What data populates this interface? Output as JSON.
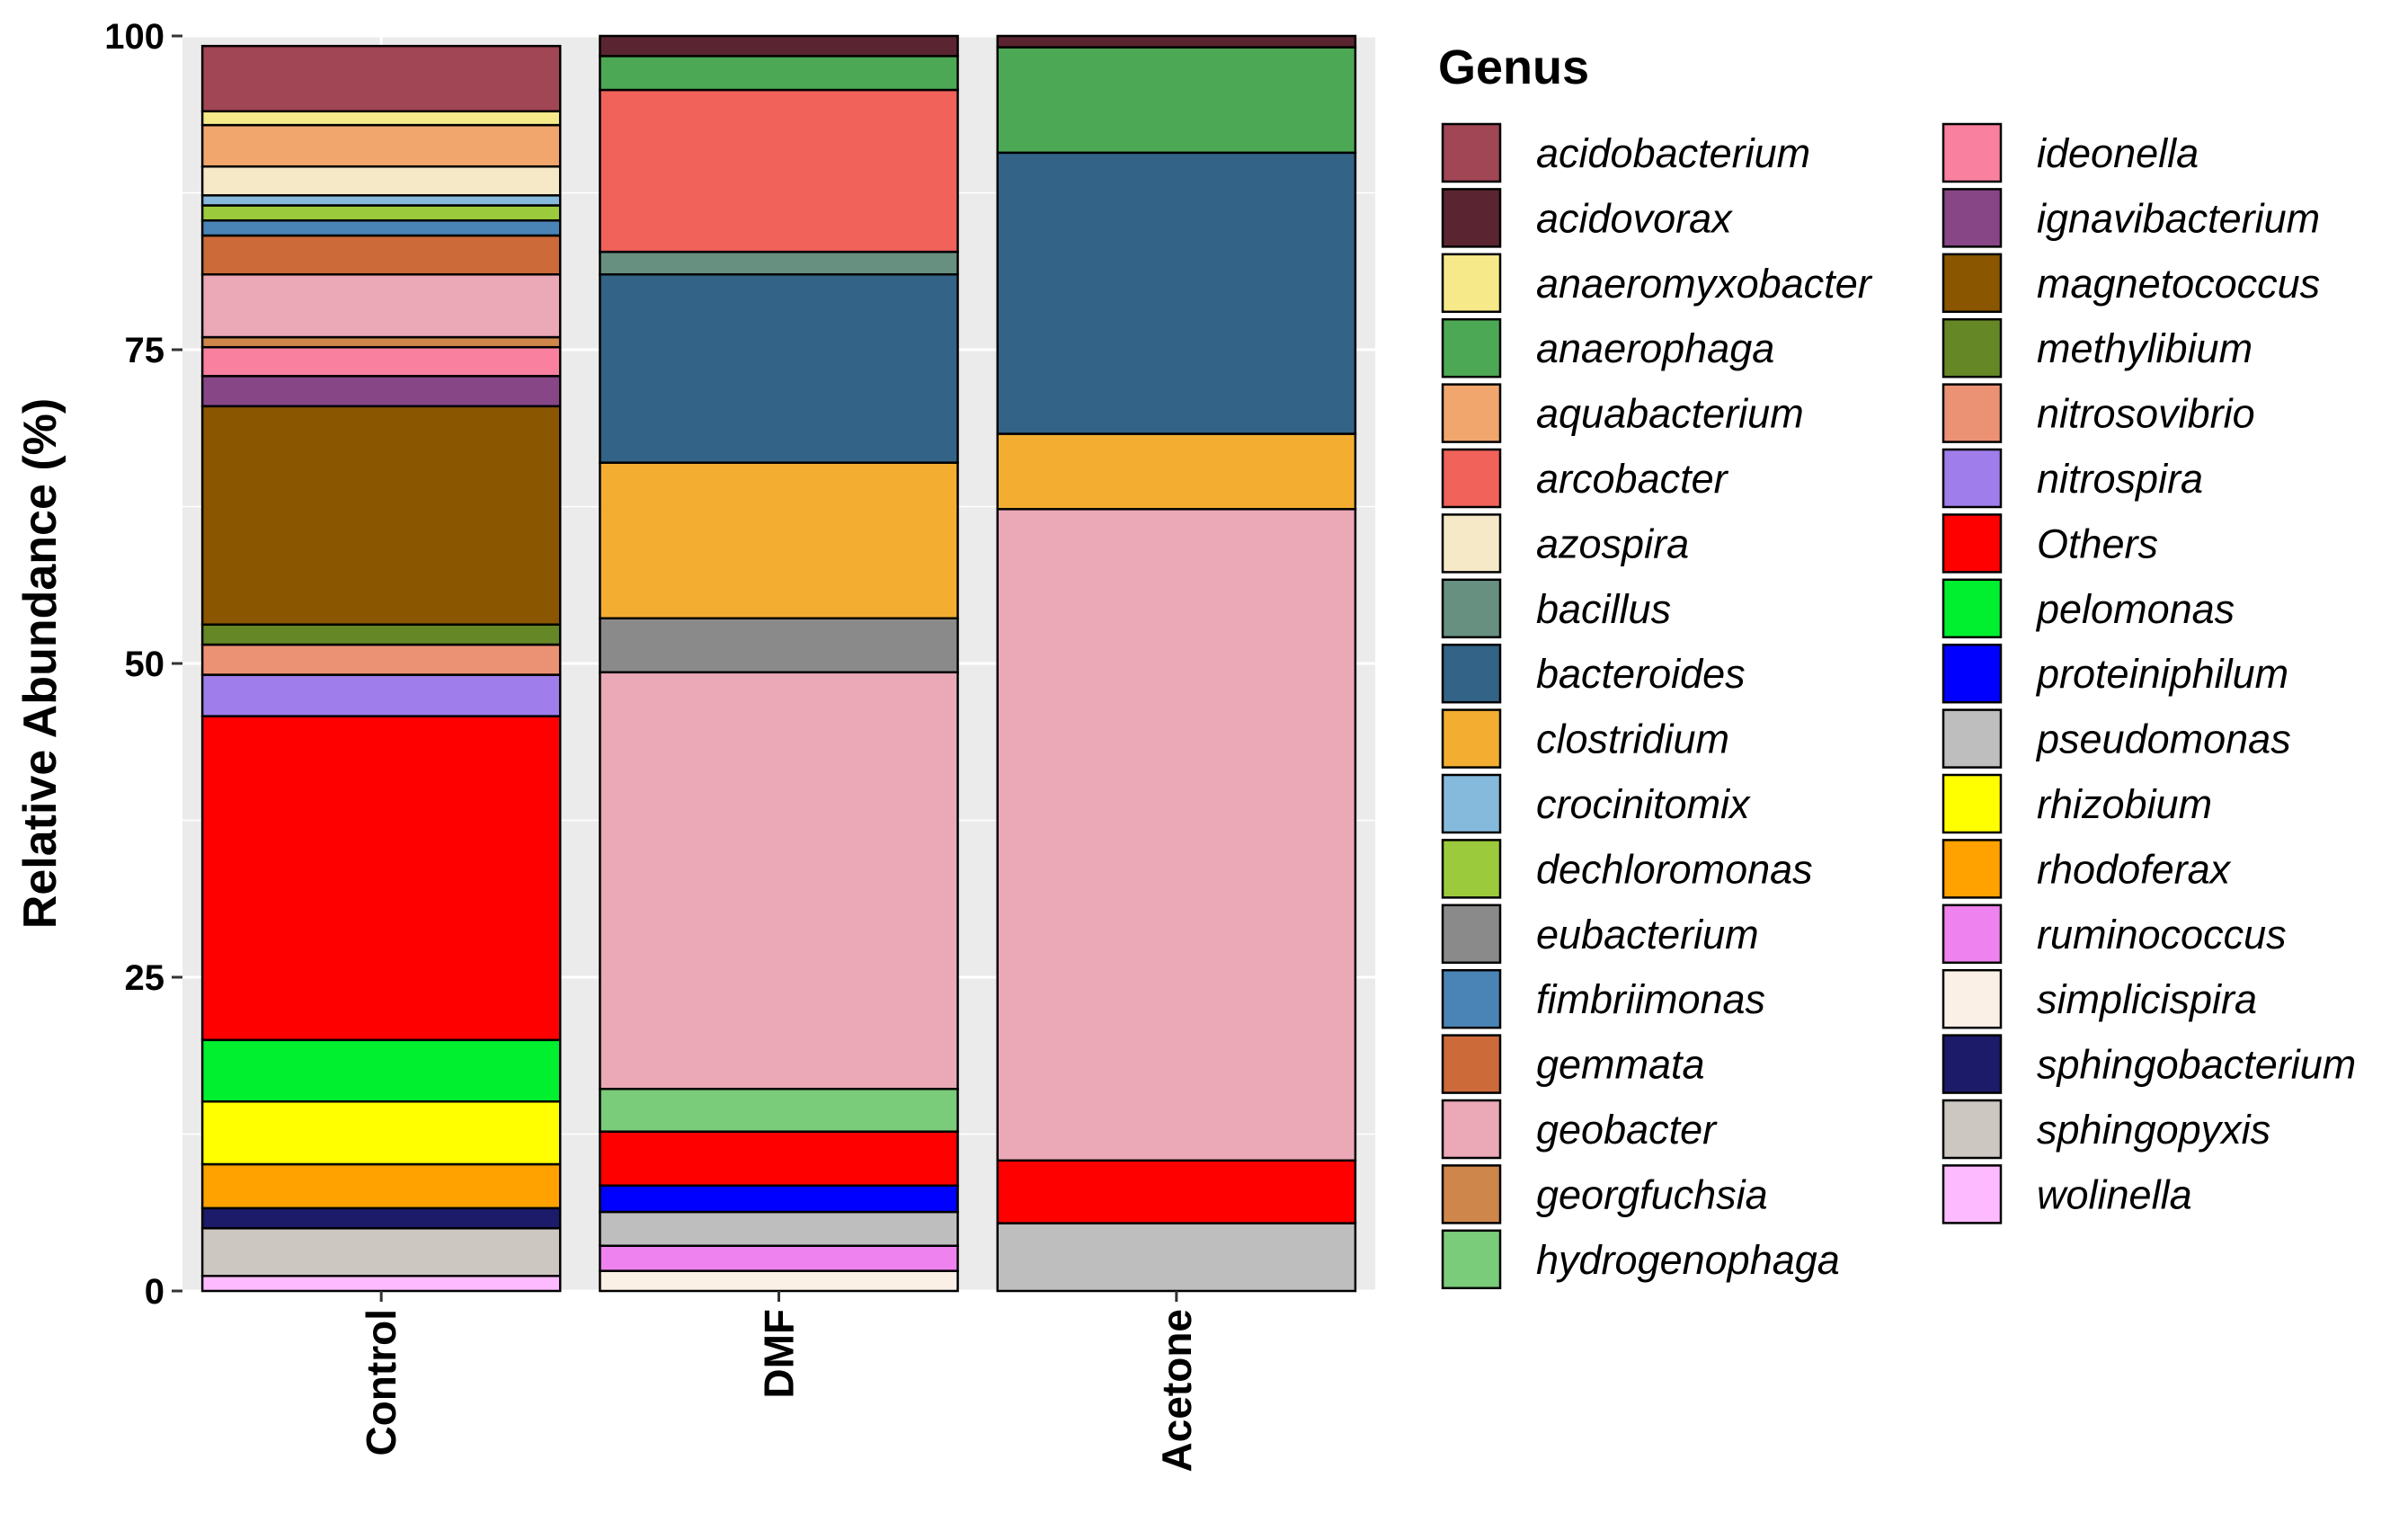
{
  "chart_data": {
    "type": "bar",
    "stacked": true,
    "title": "",
    "xlabel": "",
    "ylabel": "Relative Abundance (%)",
    "ylim": [
      0,
      100
    ],
    "yticks": [
      0,
      25,
      50,
      75,
      100
    ],
    "grid": true,
    "legend_title": "Genus",
    "legend_position": "right",
    "categories": [
      "Control",
      "DMF",
      "Acetone"
    ],
    "genera": [
      {
        "name": "acidobacterium",
        "color": "#A04654"
      },
      {
        "name": "acidovorax",
        "color": "#5A2530"
      },
      {
        "name": "anaeromyxobacter",
        "color": "#F6E98A"
      },
      {
        "name": "anaerophaga",
        "color": "#4CA854"
      },
      {
        "name": "aquabacterium",
        "color": "#F1A66D"
      },
      {
        "name": "arcobacter",
        "color": "#F0625A"
      },
      {
        "name": "azospira",
        "color": "#F6E9C8"
      },
      {
        "name": "bacillus",
        "color": "#679080"
      },
      {
        "name": "bacteroides",
        "color": "#336386"
      },
      {
        "name": "clostridium",
        "color": "#F3AE31"
      },
      {
        "name": "crocinitomix",
        "color": "#86BADC"
      },
      {
        "name": "dechloromonas",
        "color": "#9BCB3C"
      },
      {
        "name": "eubacterium",
        "color": "#8A8A8A"
      },
      {
        "name": "fimbriimonas",
        "color": "#4A84B6"
      },
      {
        "name": "gemmata",
        "color": "#CC6A3A"
      },
      {
        "name": "geobacter",
        "color": "#EBA8B6"
      },
      {
        "name": "georgfuchsia",
        "color": "#CE864A"
      },
      {
        "name": "hydrogenophaga",
        "color": "#7ACB7A"
      },
      {
        "name": "ideonella",
        "color": "#FA80A0"
      },
      {
        "name": "ignavibacterium",
        "color": "#874686"
      },
      {
        "name": "magnetococcus",
        "color": "#8A5600"
      },
      {
        "name": "methylibium",
        "color": "#668726"
      },
      {
        "name": "nitrosovibrio",
        "color": "#EC9274"
      },
      {
        "name": "nitrospira",
        "color": "#9F7DEB"
      },
      {
        "name": "Others",
        "color": "#FF0000"
      },
      {
        "name": "pelomonas",
        "color": "#00F030"
      },
      {
        "name": "proteiniphilum",
        "color": "#0000FF"
      },
      {
        "name": "pseudomonas",
        "color": "#BEBEBE"
      },
      {
        "name": "rhizobium",
        "color": "#FFFF00"
      },
      {
        "name": "rhodoferax",
        "color": "#FFA200"
      },
      {
        "name": "ruminococcus",
        "color": "#EE82EE"
      },
      {
        "name": "simplicispira",
        "color": "#FAF0E6"
      },
      {
        "name": "sphingobacterium",
        "color": "#1C1B6A"
      },
      {
        "name": "sphingopyxis",
        "color": "#CDC7C2"
      },
      {
        "name": "wolinella",
        "color": "#FEBAFE"
      }
    ],
    "series": [
      {
        "name": "Control",
        "segments": [
          {
            "genus": "wolinella",
            "value": 1.2
          },
          {
            "genus": "sphingopyxis",
            "value": 3.8
          },
          {
            "genus": "sphingobacterium",
            "value": 1.6
          },
          {
            "genus": "rhodoferax",
            "value": 3.5
          },
          {
            "genus": "rhizobium",
            "value": 5.0
          },
          {
            "genus": "pelomonas",
            "value": 4.9
          },
          {
            "genus": "Others",
            "value": 25.8
          },
          {
            "genus": "nitrospira",
            "value": 3.3
          },
          {
            "genus": "nitrosovibrio",
            "value": 2.4
          },
          {
            "genus": "methylibium",
            "value": 1.6
          },
          {
            "genus": "magnetococcus",
            "value": 17.4
          },
          {
            "genus": "ignavibacterium",
            "value": 2.4
          },
          {
            "genus": "ideonella",
            "value": 2.3
          },
          {
            "genus": "georgfuchsia",
            "value": 0.8
          },
          {
            "genus": "geobacter",
            "value": 5.0
          },
          {
            "genus": "gemmata",
            "value": 3.1
          },
          {
            "genus": "fimbriimonas",
            "value": 1.2
          },
          {
            "genus": "dechloromonas",
            "value": 1.2
          },
          {
            "genus": "crocinitomix",
            "value": 0.8
          },
          {
            "genus": "azospira",
            "value": 2.3
          },
          {
            "genus": "aquabacterium",
            "value": 3.3
          },
          {
            "genus": "anaeromyxobacter",
            "value": 1.1
          },
          {
            "genus": "acidobacterium",
            "value": 5.2
          }
        ]
      },
      {
        "name": "DMF",
        "segments": [
          {
            "genus": "simplicispira",
            "value": 1.6
          },
          {
            "genus": "ruminococcus",
            "value": 2.0
          },
          {
            "genus": "pseudomonas",
            "value": 2.7
          },
          {
            "genus": "proteiniphilum",
            "value": 2.1
          },
          {
            "genus": "Others",
            "value": 4.3
          },
          {
            "genus": "hydrogenophaga",
            "value": 3.4
          },
          {
            "genus": "geobacter",
            "value": 33.2
          },
          {
            "genus": "eubacterium",
            "value": 4.3
          },
          {
            "genus": "clostridium",
            "value": 12.4
          },
          {
            "genus": "bacteroides",
            "value": 15.0
          },
          {
            "genus": "bacillus",
            "value": 1.8
          },
          {
            "genus": "arcobacter",
            "value": 12.9
          },
          {
            "genus": "anaerophaga",
            "value": 2.7
          },
          {
            "genus": "acidovorax",
            "value": 1.6
          }
        ]
      },
      {
        "name": "Acetone",
        "segments": [
          {
            "genus": "pseudomonas",
            "value": 5.4
          },
          {
            "genus": "Others",
            "value": 5.0
          },
          {
            "genus": "geobacter",
            "value": 51.9
          },
          {
            "genus": "clostridium",
            "value": 6.0
          },
          {
            "genus": "bacteroides",
            "value": 22.4
          },
          {
            "genus": "anaerophaga",
            "value": 8.4
          },
          {
            "genus": "acidovorax",
            "value": 0.9
          }
        ]
      }
    ]
  }
}
